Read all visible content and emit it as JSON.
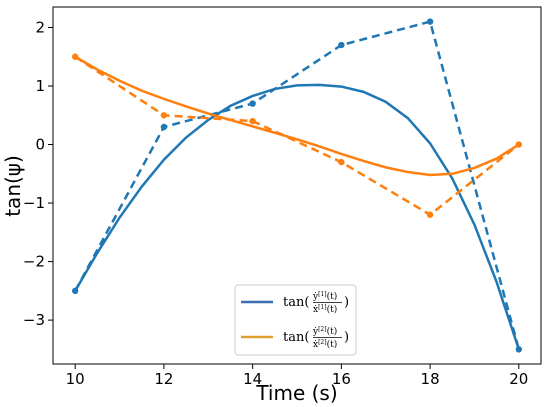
{
  "chart_data": {
    "type": "line",
    "title": "",
    "xlabel": "Time (s)",
    "ylabel": "tan(ψ)",
    "xlim": [
      9.5,
      20.5
    ],
    "ylim": [
      -3.75,
      2.35
    ],
    "xticks": [
      10,
      12,
      14,
      16,
      18,
      20
    ],
    "yticks": [
      -3,
      -2,
      -1,
      0,
      1,
      2
    ],
    "xtick_labels": [
      "10",
      "12",
      "14",
      "16",
      "18",
      "20"
    ],
    "ytick_labels": [
      "−3",
      "−2",
      "−1",
      "0",
      "1",
      "2"
    ],
    "grid": false,
    "legend_position": "lower-center",
    "series": [
      {
        "name": "tan(ẏ[1](t)/ẋ[1](t))",
        "legend_tan": "tan(",
        "legend_num": "ẏ",
        "legend_num_sup": "[1]",
        "legend_num_arg": "(t)",
        "legend_den": "ẋ",
        "legend_den_sup": "[1]",
        "legend_den_arg": "(t)",
        "legend_close": ")",
        "legend_color": "#3a6db2",
        "control_color": "#1f77b4",
        "curve_color": "#1f77b4",
        "control_points": {
          "x": [
            10,
            12,
            14,
            16,
            18,
            20
          ],
          "y": [
            -2.5,
            0.3,
            0.7,
            1.7,
            2.1,
            -3.5
          ]
        },
        "curve": {
          "x": [
            10,
            10.5,
            11,
            11.5,
            12,
            12.5,
            13,
            13.5,
            14,
            14.5,
            15,
            15.5,
            16,
            16.5,
            17,
            17.5,
            18,
            18.5,
            19,
            19.5,
            20
          ],
          "y": [
            -2.5,
            -1.85,
            -1.25,
            -0.72,
            -0.26,
            0.12,
            0.42,
            0.66,
            0.83,
            0.95,
            1.01,
            1.02,
            0.99,
            0.9,
            0.73,
            0.45,
            0.02,
            -0.58,
            -1.37,
            -2.35,
            -3.5
          ]
        }
      },
      {
        "name": "tan(ẏ[2](t)/ẋ[2](t))",
        "legend_tan": "tan(",
        "legend_num": "ẏ",
        "legend_num_sup": "[2]",
        "legend_num_arg": "(t)",
        "legend_den": "ẋ",
        "legend_den_sup": "[2]",
        "legend_den_arg": "(t)",
        "legend_close": ")",
        "legend_color": "#e0a030",
        "control_color": "#ff7f0e",
        "curve_color": "#ff7f0e",
        "control_points": {
          "x": [
            10,
            12,
            14,
            16,
            18,
            20
          ],
          "y": [
            1.5,
            0.5,
            0.4,
            -0.3,
            -1.2,
            0.0
          ]
        },
        "curve": {
          "x": [
            10,
            10.5,
            11,
            11.5,
            12,
            12.5,
            13,
            13.5,
            14,
            14.5,
            15,
            15.5,
            16,
            16.5,
            17,
            17.5,
            18,
            18.5,
            19,
            19.5,
            20
          ],
          "y": [
            1.5,
            1.28,
            1.09,
            0.92,
            0.78,
            0.65,
            0.53,
            0.42,
            0.31,
            0.2,
            0.09,
            -0.03,
            -0.16,
            -0.28,
            -0.39,
            -0.47,
            -0.52,
            -0.5,
            -0.4,
            -0.24,
            0.0
          ]
        }
      }
    ]
  }
}
